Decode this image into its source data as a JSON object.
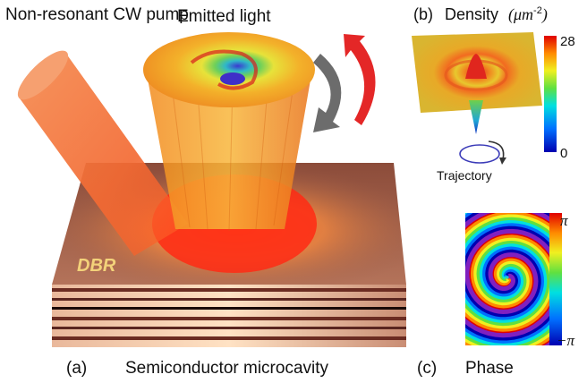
{
  "labels": {
    "pump": "Non-resonant CW pump",
    "emitted": "Emitted light",
    "panel_b": "(b)",
    "density": "Density",
    "density_unit_mu": "μm",
    "density_unit_exp": "-2",
    "colorbar_max": "28",
    "colorbar_min": "0",
    "trajectory": "Trajectory",
    "phase_max": "π",
    "phase_min": "−π",
    "panel_a": "(a)",
    "microcavity": "Semiconductor microcavity",
    "panel_c": "(c)",
    "phase": "Phase",
    "dbr": "DBR"
  },
  "colors": {
    "pump_beam": "#f07a3c",
    "slab_top": "#a5634d",
    "slab_glow": "#ff3b1a",
    "emission_cylinder": "#f6a629",
    "arrow_gray": "#666666",
    "arrow_red": "#e42727",
    "trajectory_ring": "#3b3bb8"
  }
}
